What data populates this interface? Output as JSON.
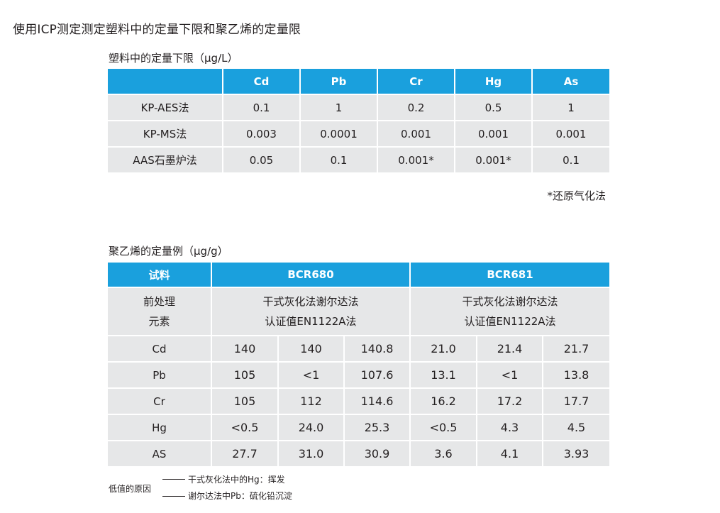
{
  "title": "使用ICP测定测定塑料中的定量下限和聚乙烯的定量限",
  "table1": {
    "caption": "塑料中的定量下限（μg/L）",
    "headers": [
      "",
      "Cd",
      "Pb",
      "Cr",
      "Hg",
      "As"
    ],
    "rows": [
      [
        "KP-AES法",
        "0.1",
        "1",
        "0.2",
        "0.5",
        "1"
      ],
      [
        "KP-MS法",
        "0.003",
        "0.0001",
        "0.001",
        "0.001",
        "0.001"
      ],
      [
        "AAS石墨炉法",
        "0.05",
        "0.1",
        "0.001*",
        "0.001*",
        "0.1"
      ]
    ],
    "note": "*还原气化法"
  },
  "table2": {
    "caption": "聚乙烯的定量例（μg/g）",
    "header_sample": "试料",
    "header_bcr680": "BCR680",
    "header_bcr681": "BCR681",
    "pre_label_line1": "前处理",
    "pre_label_line2": "元素",
    "pre_bcr680_line1": "干式灰化法谢尔达法",
    "pre_bcr680_line2": "认证值EN1122A法",
    "pre_bcr681_line1": "干式灰化法谢尔达法",
    "pre_bcr681_line2": "认证值EN1122A法",
    "rows": [
      [
        "Cd",
        "140",
        "140",
        "140.8",
        "21.0",
        "21.4",
        "21.7"
      ],
      [
        "Pb",
        "105",
        "<1",
        "107.6",
        "13.1",
        "<1",
        "13.8"
      ],
      [
        "Cr",
        "105",
        "112",
        "114.6",
        "16.2",
        "17.2",
        "17.7"
      ],
      [
        "Hg",
        "<0.5",
        "24.0",
        "25.3",
        "<0.5",
        "4.3",
        "4.5"
      ],
      [
        "AS",
        "27.7",
        "31.0",
        "30.9",
        "3.6",
        "4.1",
        "3.93"
      ]
    ]
  },
  "footnote": {
    "label": "低值的原因",
    "reason1": "干式灰化法中的Hg：挥发",
    "reason2": "谢尔达法中Pb：硫化铅沉淀"
  },
  "colors": {
    "header_bg": "#1aa0dd",
    "cell_bg": "#e6e7e8"
  }
}
